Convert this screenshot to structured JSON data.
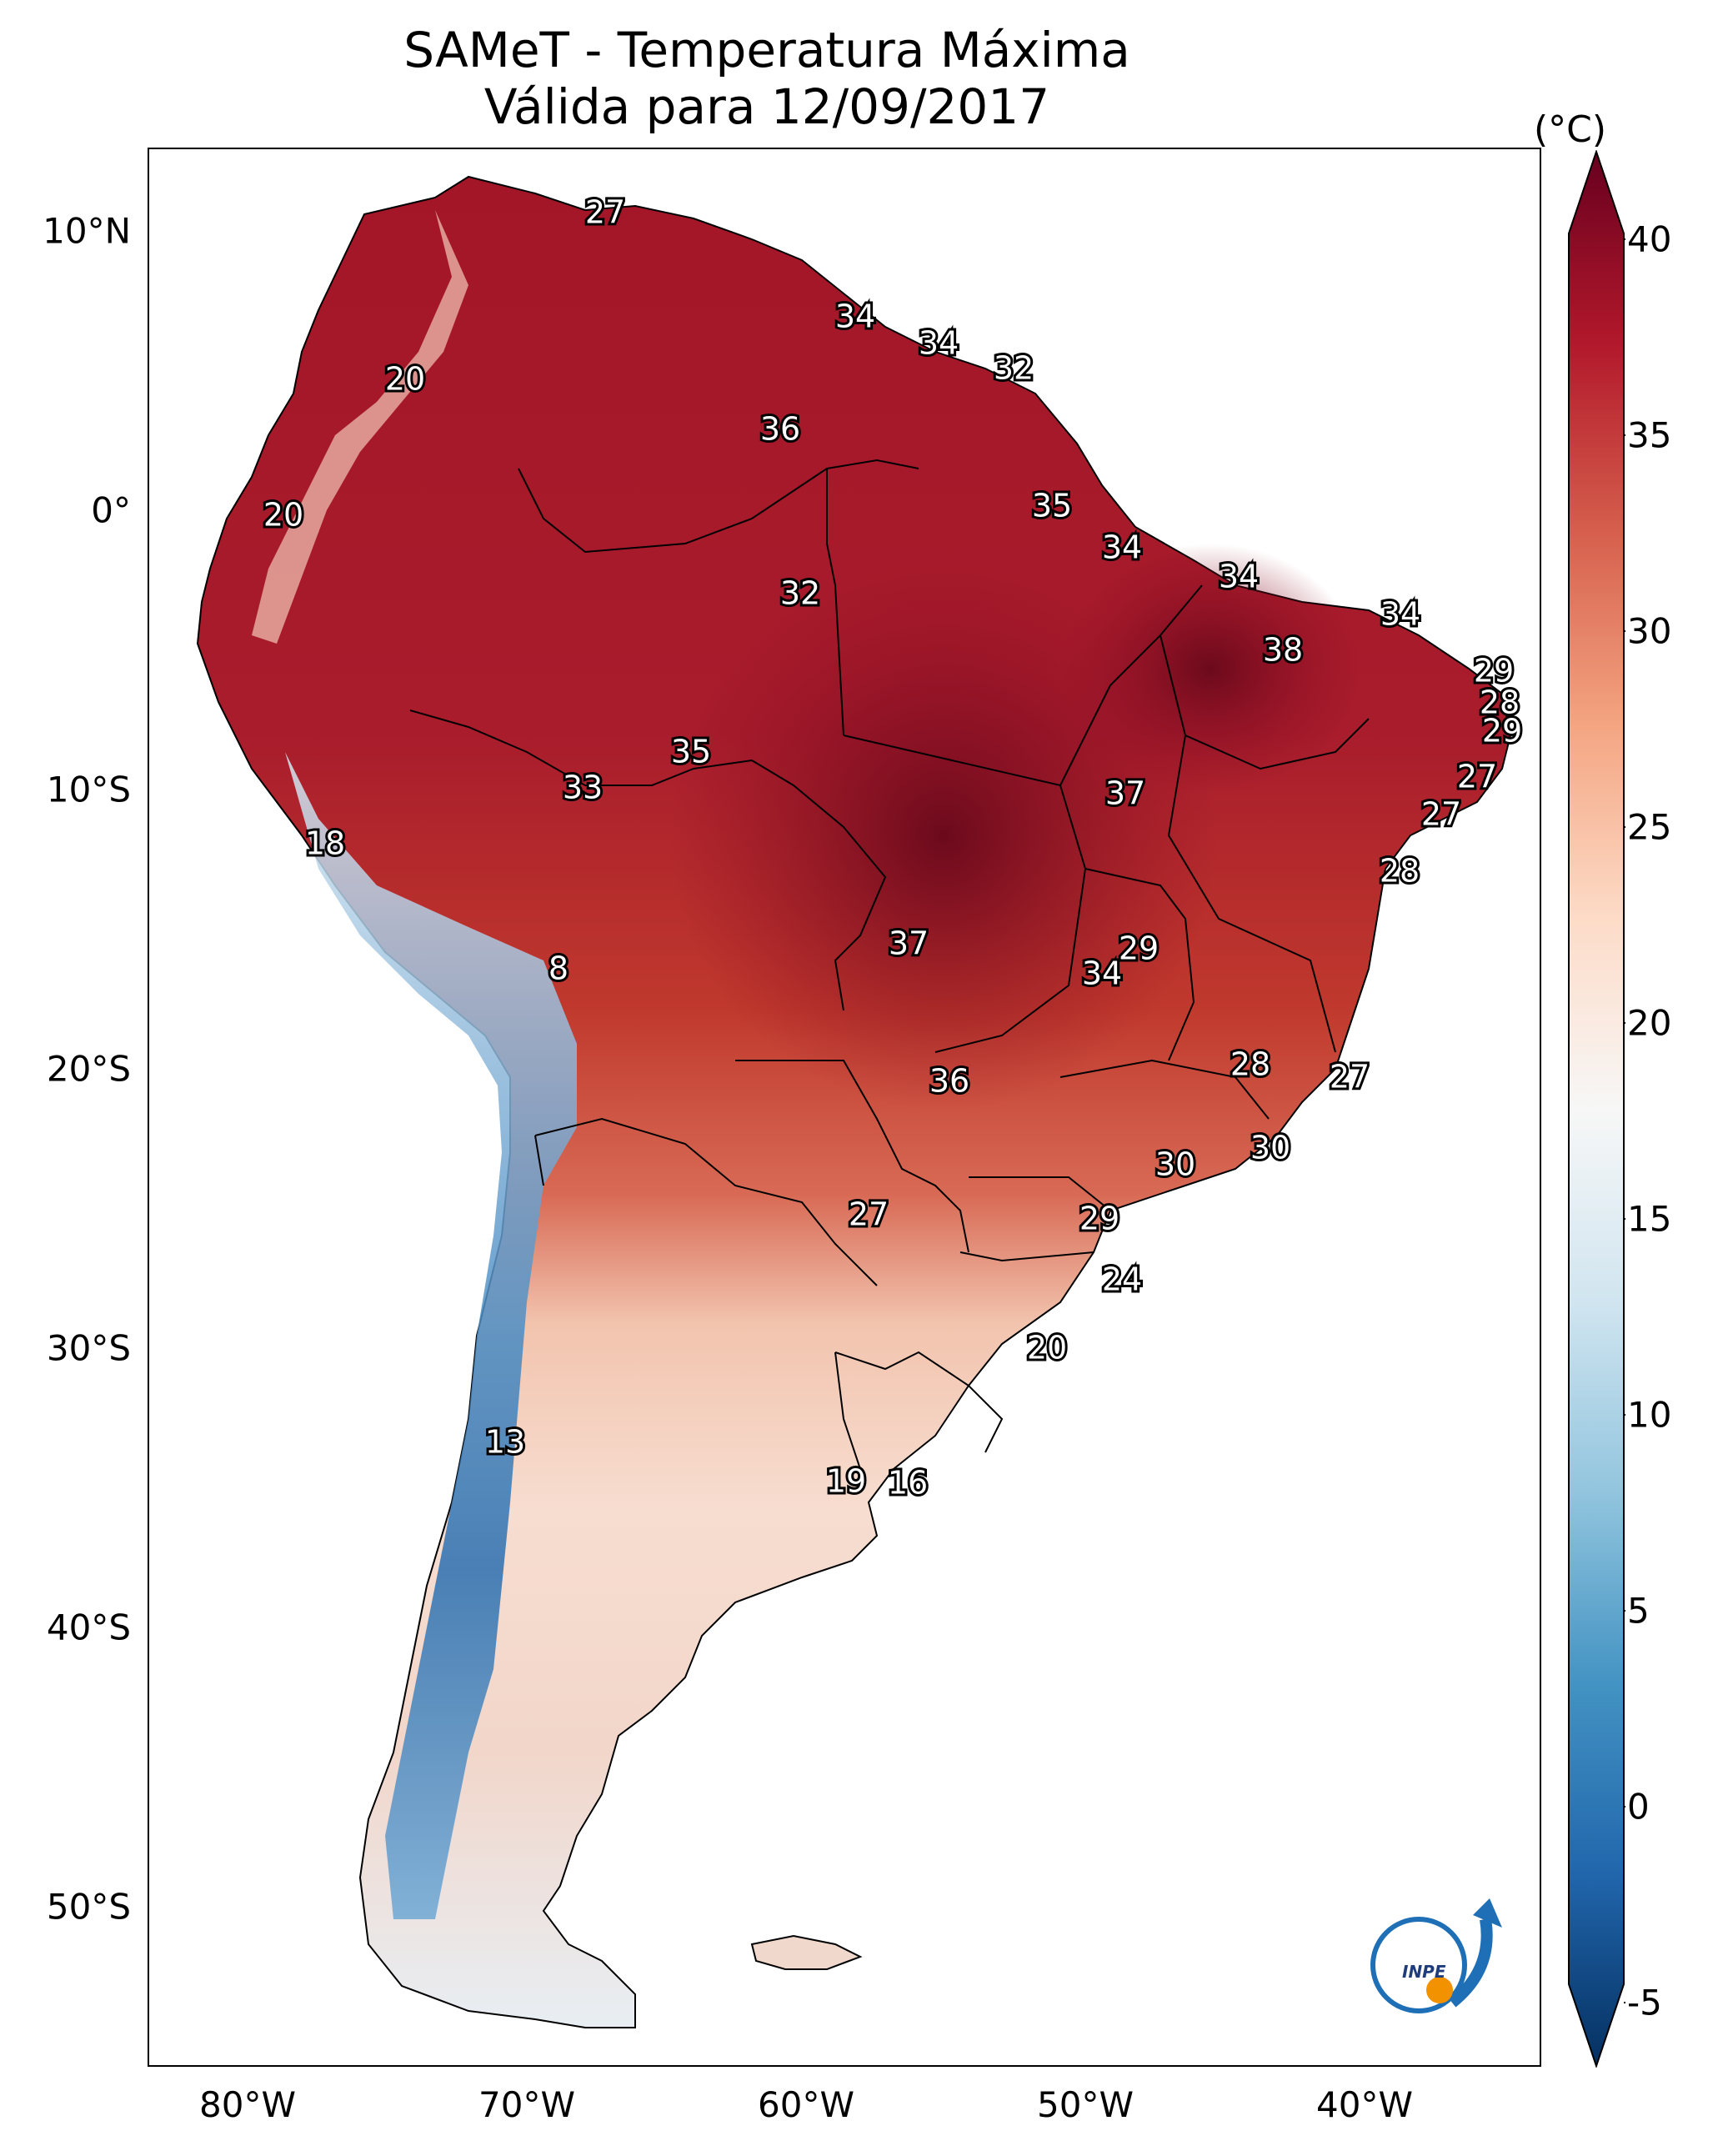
{
  "title": {
    "line1": "SAMeT - Temperatura Máxima",
    "line2": "Válida para 12/09/2017"
  },
  "colorbar": {
    "unit": "(°C)",
    "ticks": [
      "40",
      "35",
      "30",
      "25",
      "20",
      "15",
      "10",
      "5",
      "0",
      "-5"
    ],
    "colors": [
      "#053061",
      "#2166ac",
      "#4393c3",
      "#92c5de",
      "#d1e5f0",
      "#f7f7f7",
      "#fddbc7",
      "#f4a582",
      "#d6604d",
      "#b2182b",
      "#67001f"
    ]
  },
  "axes": {
    "lat_labels": [
      "10°N",
      "0°",
      "10°S",
      "20°S",
      "30°S",
      "40°S",
      "50°S"
    ],
    "lon_labels": [
      "80°W",
      "70°W",
      "60°W",
      "50°W",
      "40°W"
    ]
  },
  "map_labels": [
    "27",
    "20",
    "34",
    "34",
    "32",
    "36",
    "20",
    "35",
    "34",
    "32",
    "34",
    "34",
    "38",
    "29",
    "28",
    "29",
    "35",
    "33",
    "27",
    "37",
    "18",
    "27",
    "28",
    "37",
    "29",
    "34",
    "8",
    "28",
    "27",
    "36",
    "30",
    "30",
    "27",
    "29",
    "24",
    "20",
    "13",
    "19",
    "16"
  ],
  "logo": {
    "text": "INPE"
  },
  "colors": {
    "hot": "#9e0d26",
    "cold": "#2166ac",
    "border": "#000000"
  }
}
